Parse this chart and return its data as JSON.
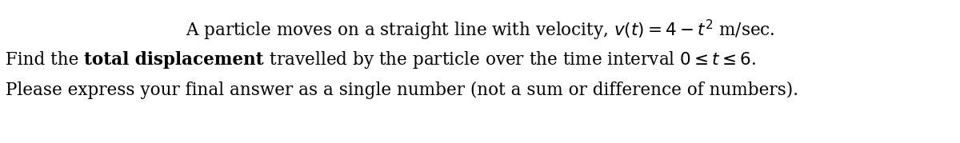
{
  "line1": "A particle moves on a straight line with velocity, $v(t) = 4-t^2$ m/sec.",
  "line2a": "Find the ",
  "line2b": "total displacement",
  "line2c": " travelled by the particle over the time interval $0 \\leq t \\leq 6$.",
  "line3": "Please express your final answer as a single number (not a sum or difference of numbers).",
  "bg_color": "#ffffff",
  "font_size": 15.5,
  "fig_width": 12.0,
  "fig_height": 1.79,
  "dpi": 100
}
